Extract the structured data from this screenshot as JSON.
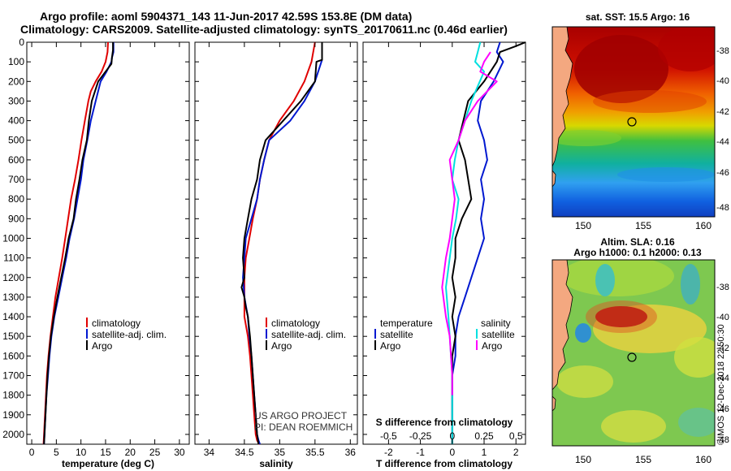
{
  "title": {
    "line1": "Argo profile: aoml 5904371_143 11-Jun-2017 42.59S 153.8E (DM data)",
    "line2": "Climatology: CARS2009. Satellite-adjusted climatology: synTS_20170611.nc (0.46d earlier)"
  },
  "colors": {
    "climatology": "#e00000",
    "satellite": "#0018d0",
    "argo": "#000000",
    "sat_temp": "#0018d0",
    "sat_sal": "#00e0e0",
    "argo_sal": "#ff00ff"
  },
  "chart_data": [
    {
      "type": "line",
      "name": "temperature",
      "xlabel": "temperature (deg C)",
      "xlim": [
        -1,
        32
      ],
      "xticks": [
        "0",
        "5",
        "10",
        "15",
        "20",
        "25",
        "30"
      ],
      "ylim": [
        0,
        2050
      ],
      "yticks": [
        "0",
        "100",
        "200",
        "300",
        "400",
        "500",
        "600",
        "700",
        "800",
        "900",
        "1000",
        "1100",
        "1200",
        "1300",
        "1400",
        "1500",
        "1600",
        "1700",
        "1800",
        "1900",
        "2000"
      ],
      "legend": [
        "climatology",
        "satellite-adj. clim.",
        "Argo"
      ],
      "series": [
        {
          "name": "climatology",
          "color_key": "climatology",
          "x": [
            15.5,
            15.4,
            15.0,
            14.2,
            13.0,
            12.0,
            11.5,
            10.8,
            10.1,
            9.5,
            8.8,
            8.0,
            7.4,
            6.8,
            6.2,
            5.5,
            4.8,
            4.3,
            3.8,
            3.4,
            3.1,
            2.9,
            2.7,
            2.5,
            2.4
          ],
          "y": [
            0,
            50,
            100,
            150,
            200,
            250,
            300,
            400,
            500,
            600,
            700,
            800,
            900,
            1000,
            1100,
            1200,
            1300,
            1400,
            1500,
            1600,
            1700,
            1800,
            1900,
            2000,
            2050
          ]
        },
        {
          "name": "satellite-adj. clim.",
          "color_key": "satellite",
          "x": [
            16.6,
            16.6,
            16.3,
            16.2,
            15.2,
            14.0,
            13.0,
            12.0,
            11.3,
            10.5,
            10.0,
            9.3,
            8.6,
            7.7,
            7.0,
            6.2,
            5.4,
            4.6,
            4.0,
            3.6,
            3.3,
            3.0,
            2.8,
            2.6,
            2.5
          ],
          "y": [
            0,
            50,
            80,
            100,
            150,
            200,
            300,
            400,
            500,
            600,
            700,
            800,
            900,
            1000,
            1100,
            1200,
            1300,
            1400,
            1500,
            1600,
            1700,
            1800,
            1900,
            2000,
            2050
          ]
        },
        {
          "name": "Argo",
          "color_key": "argo",
          "x": [
            16.5,
            16.5,
            16.3,
            16.2,
            15.0,
            13.5,
            12.2,
            11.6,
            11.2,
            10.3,
            9.7,
            9.0,
            8.5,
            7.5,
            6.8,
            6.0,
            5.2,
            4.5,
            3.9,
            3.5,
            3.2,
            3.0,
            2.8,
            2.6,
            2.5
          ],
          "y": [
            0,
            40,
            80,
            110,
            150,
            200,
            300,
            400,
            500,
            600,
            700,
            800,
            900,
            1000,
            1100,
            1200,
            1300,
            1400,
            1500,
            1600,
            1700,
            1800,
            1900,
            2000,
            2050
          ]
        }
      ]
    },
    {
      "type": "line",
      "name": "salinity",
      "xlabel": "salinity",
      "xlim": [
        33.8,
        36.1
      ],
      "xticks": [
        "34",
        "34.5",
        "35",
        "35.5",
        "36"
      ],
      "ylim": [
        0,
        2050
      ],
      "legend": [
        "climatology",
        "satellite-adj. clim.",
        "Argo"
      ],
      "annotation": [
        "US ARGO PROJECT",
        "PI: DEAN ROEMMICH"
      ],
      "series": [
        {
          "name": "climatology",
          "color_key": "climatology",
          "x": [
            35.5,
            35.45,
            35.35,
            35.2,
            35.0,
            34.85,
            34.78,
            34.72,
            34.68,
            34.62,
            34.57,
            34.52,
            34.5,
            34.5,
            34.5,
            34.5,
            34.55,
            34.58,
            34.6,
            34.62,
            34.64,
            34.66,
            34.68,
            34.7,
            34.72
          ],
          "y": [
            0,
            100,
            200,
            300,
            400,
            500,
            600,
            700,
            800,
            900,
            1000,
            1100,
            1200,
            1260,
            1300,
            1400,
            1500,
            1600,
            1700,
            1800,
            1900,
            2000,
            2030,
            2045,
            2050
          ]
        },
        {
          "name": "satellite-adj. clim.",
          "color_key": "satellite",
          "x": [
            35.6,
            35.6,
            35.5,
            35.35,
            35.15,
            34.85,
            34.78,
            34.72,
            34.68,
            34.6,
            34.52,
            34.5,
            34.48,
            34.5,
            34.55,
            34.57,
            34.6,
            34.62,
            34.64,
            34.66,
            34.68,
            34.7,
            34.72
          ],
          "y": [
            0,
            90,
            200,
            300,
            400,
            500,
            600,
            700,
            800,
            900,
            1000,
            1100,
            1200,
            1300,
            1400,
            1500,
            1600,
            1700,
            1800,
            1900,
            2000,
            2030,
            2050
          ]
        },
        {
          "name": "Argo",
          "color_key": "argo",
          "x": [
            35.6,
            35.6,
            35.52,
            35.5,
            35.3,
            35.05,
            34.8,
            34.72,
            34.68,
            34.6,
            34.55,
            34.5,
            34.48,
            34.5,
            34.46,
            34.5,
            34.52,
            34.55,
            34.58,
            34.6,
            34.62,
            34.64,
            34.66,
            34.68,
            34.7
          ],
          "y": [
            0,
            90,
            100,
            200,
            300,
            400,
            500,
            600,
            700,
            800,
            900,
            1000,
            1100,
            1200,
            1250,
            1300,
            1350,
            1400,
            1500,
            1600,
            1700,
            1800,
            1900,
            2000,
            2050
          ]
        }
      ]
    },
    {
      "type": "line",
      "name": "differences",
      "xlabel": "T difference from climatology",
      "xlabel2": "S difference from climatology",
      "xlim": [
        -2.8,
        2.3
      ],
      "xticks": [
        "-2",
        "-1",
        "0",
        "1",
        "2"
      ],
      "xticks2": [
        "-0.5",
        "-0.25",
        "0",
        "0.25",
        "0.5"
      ],
      "ylim": [
        0,
        2050
      ],
      "legend_temperature": {
        "title": "temperature",
        "items": [
          "satellite",
          "Argo"
        ]
      },
      "legend_salinity": {
        "title": "salinity",
        "items": [
          "satellite",
          "Argo"
        ]
      },
      "series": [
        {
          "name": "T satellite",
          "color_key": "sat_temp",
          "x": [
            1.5,
            1.4,
            1.6,
            1.3,
            0.9,
            0.8,
            1.0,
            1.1,
            0.9,
            1.0,
            0.9,
            1.0,
            0.8,
            0.6,
            0.4,
            0.2,
            0.1,
            0.1,
            0.0,
            0.0,
            0.0,
            0.0,
            0.0
          ],
          "y": [
            0,
            50,
            100,
            200,
            300,
            400,
            500,
            600,
            700,
            800,
            900,
            1000,
            1100,
            1200,
            1300,
            1400,
            1500,
            1600,
            1700,
            1800,
            1900,
            2000,
            2050
          ]
        },
        {
          "name": "T Argo",
          "color_key": "argo",
          "x": [
            2.3,
            2.0,
            1.5,
            1.4,
            1.0,
            0.5,
            0.2,
            0.4,
            0.5,
            0.6,
            0.3,
            0.1,
            0.1,
            0.0,
            0.1,
            0.0,
            0.1,
            0.0,
            0.0,
            0.0,
            0.0,
            0.0,
            0.0
          ],
          "y": [
            0,
            20,
            50,
            100,
            200,
            300,
            500,
            600,
            700,
            800,
            900,
            1000,
            1100,
            1200,
            1300,
            1400,
            1500,
            1600,
            1700,
            1800,
            1900,
            2000,
            2050
          ]
        },
        {
          "name": "S satellite",
          "color_key": "sat_sal",
          "x": [
            0.22,
            0.2,
            0.18,
            0.25,
            0.15,
            0.1,
            0.05,
            0.02,
            0.0,
            0.05,
            0.03,
            0.0,
            -0.02,
            -0.05,
            -0.03,
            -0.02,
            -0.01,
            0.0,
            0.0,
            0.0
          ],
          "y": [
            0,
            50,
            100,
            150,
            300,
            400,
            500,
            600,
            700,
            800,
            900,
            1000,
            1100,
            1250,
            1400,
            1500,
            1600,
            1700,
            1900,
            2050
          ]
        },
        {
          "name": "S Argo",
          "color_key": "argo_sal",
          "x": [
            0.3,
            0.25,
            0.22,
            0.35,
            0.2,
            0.1,
            0.05,
            -0.02,
            0.0,
            0.02,
            0.0,
            -0.02,
            -0.05,
            -0.08,
            -0.05,
            -0.02,
            0.0,
            0.0
          ],
          "y": [
            50,
            100,
            150,
            200,
            300,
            400,
            500,
            600,
            700,
            800,
            900,
            1000,
            1100,
            1250,
            1400,
            1500,
            1700,
            1800
          ]
        }
      ]
    }
  ],
  "maps": {
    "sst_title": "sat. SST: 15.5 Argo: 16",
    "sla_title_line1": "Altim. SLA: 0.16",
    "sla_title_line2": "Argo h1000: 0.1 h2000: 0.13",
    "yticks": [
      "-38",
      "-40",
      "-42",
      "-44",
      "-46",
      "-48"
    ],
    "xticks": [
      "150",
      "155",
      "160"
    ],
    "credit": "©IMOS 12-Dec-2018 22:50:30",
    "argo_position": {
      "lon": 153.8,
      "lat": -42.59
    }
  }
}
